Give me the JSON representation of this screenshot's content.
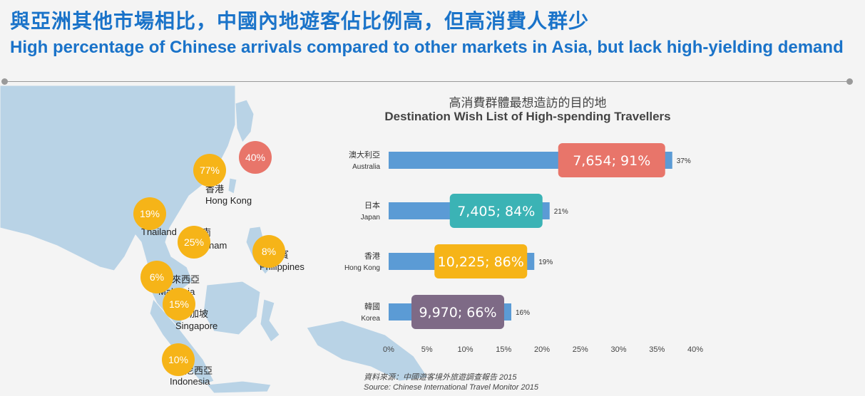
{
  "header": {
    "title_zh": "與亞洲其他市場相比，中國內地遊客佔比例高，但高消費人群少",
    "title_en": "High percentage of Chinese arrivals compared to other markets in Asia, but lack high-yielding demand"
  },
  "map": {
    "labels": [
      {
        "zh": "香港",
        "en": "Hong Kong"
      },
      {
        "en": "Thailand",
        "zh": "南"
      },
      {
        "en": "nam"
      },
      {
        "zh": "賓",
        "en": "Philippines"
      },
      {
        "zh": "馬來西亞",
        "en": "Malaysia"
      },
      {
        "zh": "加坡",
        "en": "Singapore"
      },
      {
        "zh": "尼西亞",
        "en": "Indonesia"
      }
    ],
    "circles": [
      {
        "value": "77%",
        "color": "#f6b418"
      },
      {
        "value": "40%",
        "color": "#e8756a"
      },
      {
        "value": "19%",
        "color": "#f6b418"
      },
      {
        "value": "25%",
        "color": "#f6b418"
      },
      {
        "value": "8%",
        "color": "#f6b418"
      },
      {
        "value": "6%",
        "color": "#f6b418"
      },
      {
        "value": "15%",
        "color": "#f6b418"
      },
      {
        "value": "10%",
        "color": "#f6b418"
      }
    ]
  },
  "chart_data": {
    "type": "bar",
    "orientation": "horizontal",
    "title_zh": "高消費群體最想造訪的目的地",
    "title": "Destination Wish List of High-spending Travellers",
    "categories": [
      {
        "zh": "澳大利亞",
        "en": "Australia"
      },
      {
        "zh": "日本",
        "en": "Japan"
      },
      {
        "zh": "香港",
        "en": "Hong Kong"
      },
      {
        "zh": "韓國",
        "en": "Korea"
      }
    ],
    "values": [
      37,
      21,
      19,
      16
    ],
    "value_labels": [
      "37%",
      "21%",
      "19%",
      "16%"
    ],
    "callouts": [
      {
        "text": "7,654; 91%",
        "color": "#e8756a"
      },
      {
        "text": "7,405; 84%",
        "color": "#3bb3b5"
      },
      {
        "text": "10,225; 86%",
        "color": "#f6b418"
      },
      {
        "text": "9,970; 66%",
        "color": "#7e6a86"
      }
    ],
    "xlim": [
      0,
      40
    ],
    "xticks": [
      "0%",
      "5%",
      "10%",
      "15%",
      "20%",
      "25%",
      "30%",
      "35%",
      "40%"
    ],
    "bar_color": "#5b9bd5",
    "grid": false
  },
  "source": {
    "zh": "資料來源：中國遊客境外旅遊調查報告 2015",
    "en": "Source: Chinese International Travel Monitor 2015"
  }
}
